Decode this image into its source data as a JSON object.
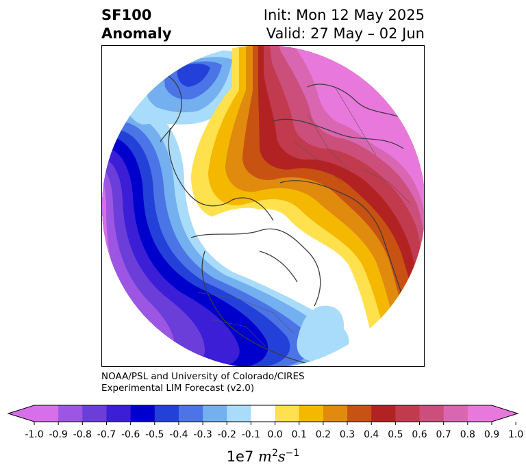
{
  "header": {
    "title_line1": "SF100",
    "title_line2": "Anomaly",
    "init_text": "Init: Mon 12 May 2025",
    "valid_text": "Valid: 27 May – 02 Jun"
  },
  "credit": {
    "line1": "NOAA/PSL and University of Colorado/CIRES",
    "line2": "Experimental LIM Forecast (v2.0)"
  },
  "colorbar": {
    "unit_prefix": "1e7",
    "unit_base1": "m",
    "unit_exp1": "2",
    "unit_base2": "s",
    "unit_exp2": "−1",
    "levels": [
      -1.0,
      -0.9,
      -0.8,
      -0.7,
      -0.6,
      -0.5,
      -0.4,
      -0.3,
      -0.2,
      -0.1,
      0.0,
      0.1,
      0.2,
      0.3,
      0.4,
      0.5,
      0.6,
      0.7,
      0.8,
      0.9,
      1.0
    ],
    "tick_labels": [
      "-1.0",
      "-0.9",
      "-0.8",
      "-0.7",
      "-0.6",
      "-0.5",
      "-0.4",
      "-0.3",
      "-0.2",
      "-0.1",
      "0.0",
      "0.1",
      "0.2",
      "0.3",
      "0.4",
      "0.5",
      "0.6",
      "0.7",
      "0.8",
      "0.9",
      "1.0"
    ],
    "colors": [
      "#d66fe9",
      "#9d56e3",
      "#6b3ed9",
      "#3b1ed6",
      "#0000cc",
      "#2341d8",
      "#4b74e6",
      "#74aff0",
      "#a9dcfb",
      "#ffffff",
      "#ffe14d",
      "#f4b800",
      "#e08a0e",
      "#c85212",
      "#b22222",
      "#c23a4e",
      "#cc4e7a",
      "#d966b0",
      "#e878dc"
    ],
    "under_color": "#d66fe9",
    "over_color": "#e878dc"
  },
  "map": {
    "projection": "north-polar-stereographic",
    "background_color": "#ffffff",
    "coastline_color": "#3c3c3c"
  }
}
